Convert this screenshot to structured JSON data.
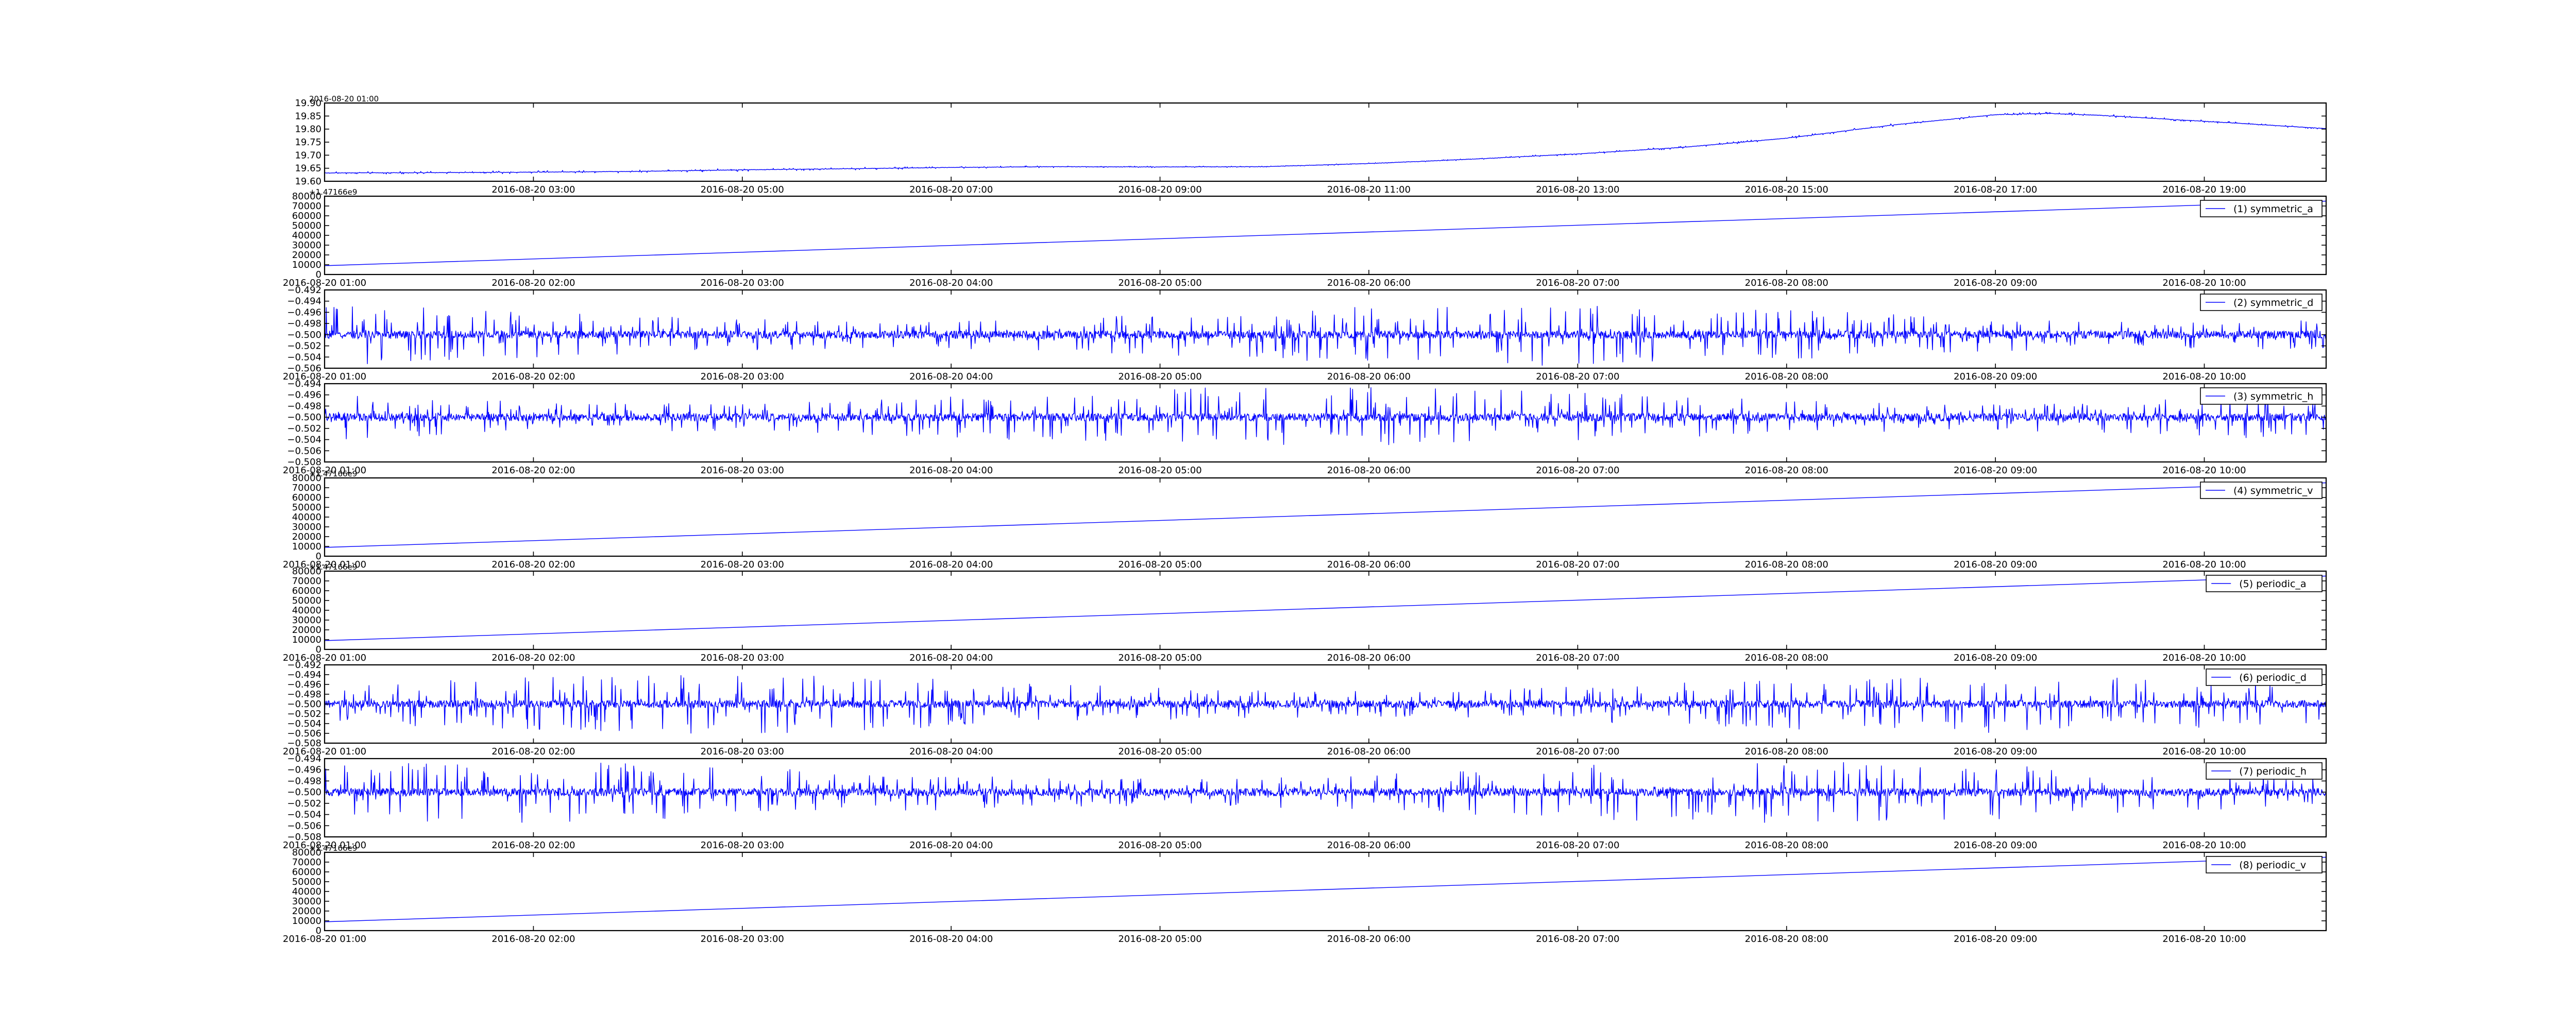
{
  "chart_data": [
    {
      "type": "line",
      "title": "",
      "xlabel": "",
      "ylabel": "",
      "color": "#0000ff",
      "grid": false,
      "legend": null,
      "offset_text": "2016-08-20 01:00",
      "xlim": [
        "2016-08-20 01:00",
        "2016-08-20 20:10"
      ],
      "ylim": [
        19.6,
        19.9
      ],
      "yticks": [
        "19.60",
        "19.65",
        "19.70",
        "19.75",
        "19.80",
        "19.85",
        "19.90"
      ],
      "xticks": [
        "2016-08-20 03:00",
        "2016-08-20 05:00",
        "2016-08-20 07:00",
        "2016-08-20 09:00",
        "2016-08-20 11:00",
        "2016-08-20 13:00",
        "2016-08-20 15:00",
        "2016-08-20 17:00",
        "2016-08-20 19:00"
      ],
      "series": [
        {
          "x": [
            "2016-08-20 01:00",
            "2016-08-20 02:00",
            "2016-08-20 03:00",
            "2016-08-20 04:00",
            "2016-08-20 05:00",
            "2016-08-20 06:00",
            "2016-08-20 07:00",
            "2016-08-20 08:00",
            "2016-08-20 09:00",
            "2016-08-20 10:00",
            "2016-08-20 11:00",
            "2016-08-20 12:00",
            "2016-08-20 13:00",
            "2016-08-20 14:00",
            "2016-08-20 15:00",
            "2016-08-20 16:00",
            "2016-08-20 17:00",
            "2016-08-20 17:30",
            "2016-08-20 18:00",
            "2016-08-20 19:00",
            "2016-08-20 20:10"
          ],
          "y": [
            19.632,
            19.633,
            19.635,
            19.638,
            19.644,
            19.648,
            19.653,
            19.656,
            19.655,
            19.656,
            19.668,
            19.685,
            19.705,
            19.73,
            19.765,
            19.815,
            19.855,
            19.86,
            19.853,
            19.83,
            19.802
          ],
          "noise": 0.006
        }
      ]
    },
    {
      "type": "line",
      "title": "",
      "xlabel": "",
      "ylabel": "",
      "color": "#0000ff",
      "grid": false,
      "legend": "top-right",
      "offset_text": "+1.47166e9",
      "xlim": [
        "2016-08-20 01:00",
        "2016-08-20 10:35"
      ],
      "ylim": [
        0,
        80000
      ],
      "yticks": [
        "0",
        "10000",
        "20000",
        "30000",
        "40000",
        "50000",
        "60000",
        "70000",
        "80000"
      ],
      "xticks": [
        "2016-08-20 01:00",
        "2016-08-20 02:00",
        "2016-08-20 03:00",
        "2016-08-20 04:00",
        "2016-08-20 05:00",
        "2016-08-20 06:00",
        "2016-08-20 07:00",
        "2016-08-20 08:00",
        "2016-08-20 09:00",
        "2016-08-20 10:00"
      ],
      "series": [
        {
          "name": "(1) symmetric_a",
          "x": [
            "2016-08-20 01:00",
            "2016-08-20 10:35"
          ],
          "y": [
            9000,
            75000
          ],
          "noise": 0
        }
      ]
    },
    {
      "type": "line",
      "title": "",
      "xlabel": "",
      "ylabel": "",
      "color": "#0000ff",
      "grid": false,
      "legend": "top-right",
      "offset_text": "",
      "xlim": [
        "2016-08-20 01:00",
        "2016-08-20 10:35"
      ],
      "ylim": [
        -0.506,
        -0.492
      ],
      "yticks": [
        "−0.506",
        "−0.504",
        "−0.502",
        "−0.500",
        "−0.498",
        "−0.496",
        "−0.494",
        "−0.492"
      ],
      "xticks": [
        "2016-08-20 01:00",
        "2016-08-20 02:00",
        "2016-08-20 03:00",
        "2016-08-20 04:00",
        "2016-08-20 05:00",
        "2016-08-20 06:00",
        "2016-08-20 07:00",
        "2016-08-20 08:00",
        "2016-08-20 09:00",
        "2016-08-20 10:00"
      ],
      "series": [
        {
          "name": "(2) symmetric_d",
          "x": [
            "2016-08-20 01:00",
            "2016-08-20 10:35"
          ],
          "y": [
            -0.5,
            -0.5
          ],
          "noise": 0.0055
        }
      ]
    },
    {
      "type": "line",
      "title": "",
      "xlabel": "",
      "ylabel": "",
      "color": "#0000ff",
      "grid": false,
      "legend": "top-right",
      "offset_text": "",
      "xlim": [
        "2016-08-20 01:00",
        "2016-08-20 10:35"
      ],
      "ylim": [
        -0.508,
        -0.494
      ],
      "yticks": [
        "−0.508",
        "−0.506",
        "−0.504",
        "−0.502",
        "−0.500",
        "−0.498",
        "−0.496",
        "−0.494"
      ],
      "xticks": [
        "2016-08-20 01:00",
        "2016-08-20 02:00",
        "2016-08-20 03:00",
        "2016-08-20 04:00",
        "2016-08-20 05:00",
        "2016-08-20 06:00",
        "2016-08-20 07:00",
        "2016-08-20 08:00",
        "2016-08-20 09:00",
        "2016-08-20 10:00"
      ],
      "series": [
        {
          "name": "(3) symmetric_h",
          "x": [
            "2016-08-20 01:00",
            "2016-08-20 10:35"
          ],
          "y": [
            -0.5,
            -0.5
          ],
          "noise": 0.0055
        }
      ]
    },
    {
      "type": "line",
      "title": "",
      "xlabel": "",
      "ylabel": "",
      "color": "#0000ff",
      "grid": false,
      "legend": "top-right",
      "offset_text": "+1.47166e9",
      "xlim": [
        "2016-08-20 01:00",
        "2016-08-20 10:35"
      ],
      "ylim": [
        0,
        80000
      ],
      "yticks": [
        "0",
        "10000",
        "20000",
        "30000",
        "40000",
        "50000",
        "60000",
        "70000",
        "80000"
      ],
      "xticks": [
        "2016-08-20 01:00",
        "2016-08-20 02:00",
        "2016-08-20 03:00",
        "2016-08-20 04:00",
        "2016-08-20 05:00",
        "2016-08-20 06:00",
        "2016-08-20 07:00",
        "2016-08-20 08:00",
        "2016-08-20 09:00",
        "2016-08-20 10:00"
      ],
      "series": [
        {
          "name": "(4) symmetric_v",
          "x": [
            "2016-08-20 01:00",
            "2016-08-20 10:35"
          ],
          "y": [
            9000,
            75000
          ],
          "noise": 0
        }
      ]
    },
    {
      "type": "line",
      "title": "",
      "xlabel": "",
      "ylabel": "",
      "color": "#0000ff",
      "grid": false,
      "legend": "top-right",
      "offset_text": "+1.47166e9",
      "xlim": [
        "2016-08-20 01:00",
        "2016-08-20 10:35"
      ],
      "ylim": [
        0,
        80000
      ],
      "yticks": [
        "0",
        "10000",
        "20000",
        "30000",
        "40000",
        "50000",
        "60000",
        "70000",
        "80000"
      ],
      "xticks": [
        "2016-08-20 01:00",
        "2016-08-20 02:00",
        "2016-08-20 03:00",
        "2016-08-20 04:00",
        "2016-08-20 05:00",
        "2016-08-20 06:00",
        "2016-08-20 07:00",
        "2016-08-20 08:00",
        "2016-08-20 09:00",
        "2016-08-20 10:00"
      ],
      "series": [
        {
          "name": "(5) periodic_a",
          "x": [
            "2016-08-20 01:00",
            "2016-08-20 10:35"
          ],
          "y": [
            9000,
            75000
          ],
          "noise": 0
        }
      ]
    },
    {
      "type": "line",
      "title": "",
      "xlabel": "",
      "ylabel": "",
      "color": "#0000ff",
      "grid": false,
      "legend": "top-right",
      "offset_text": "",
      "xlim": [
        "2016-08-20 01:00",
        "2016-08-20 10:35"
      ],
      "ylim": [
        -0.508,
        -0.492
      ],
      "yticks": [
        "−0.508",
        "−0.506",
        "−0.504",
        "−0.502",
        "−0.500",
        "−0.498",
        "−0.496",
        "−0.494",
        "−0.492"
      ],
      "xticks": [
        "2016-08-20 01:00",
        "2016-08-20 02:00",
        "2016-08-20 03:00",
        "2016-08-20 04:00",
        "2016-08-20 05:00",
        "2016-08-20 06:00",
        "2016-08-20 07:00",
        "2016-08-20 08:00",
        "2016-08-20 09:00",
        "2016-08-20 10:00"
      ],
      "series": [
        {
          "name": "(6) periodic_d",
          "x": [
            "2016-08-20 01:00",
            "2016-08-20 10:35"
          ],
          "y": [
            -0.5,
            -0.5
          ],
          "noise": 0.006
        }
      ]
    },
    {
      "type": "line",
      "title": "",
      "xlabel": "",
      "ylabel": "",
      "color": "#0000ff",
      "grid": false,
      "legend": "top-right",
      "offset_text": "",
      "xlim": [
        "2016-08-20 01:00",
        "2016-08-20 10:35"
      ],
      "ylim": [
        -0.508,
        -0.494
      ],
      "yticks": [
        "−0.508",
        "−0.506",
        "−0.504",
        "−0.502",
        "−0.500",
        "−0.498",
        "−0.496",
        "−0.494"
      ],
      "xticks": [
        "2016-08-20 01:00",
        "2016-08-20 02:00",
        "2016-08-20 03:00",
        "2016-08-20 04:00",
        "2016-08-20 05:00",
        "2016-08-20 06:00",
        "2016-08-20 07:00",
        "2016-08-20 08:00",
        "2016-08-20 09:00",
        "2016-08-20 10:00"
      ],
      "series": [
        {
          "name": "(7) periodic_h",
          "x": [
            "2016-08-20 01:00",
            "2016-08-20 10:35"
          ],
          "y": [
            -0.5,
            -0.5
          ],
          "noise": 0.0055
        }
      ]
    },
    {
      "type": "line",
      "title": "",
      "xlabel": "",
      "ylabel": "",
      "color": "#0000ff",
      "grid": false,
      "legend": "top-right",
      "offset_text": "+1.47166e9",
      "xlim": [
        "2016-08-20 01:00",
        "2016-08-20 10:35"
      ],
      "ylim": [
        0,
        80000
      ],
      "yticks": [
        "0",
        "10000",
        "20000",
        "30000",
        "40000",
        "50000",
        "60000",
        "70000",
        "80000"
      ],
      "xticks": [
        "2016-08-20 01:00",
        "2016-08-20 02:00",
        "2016-08-20 03:00",
        "2016-08-20 04:00",
        "2016-08-20 05:00",
        "2016-08-20 06:00",
        "2016-08-20 07:00",
        "2016-08-20 08:00",
        "2016-08-20 09:00",
        "2016-08-20 10:00"
      ],
      "series": [
        {
          "name": "(8) periodic_v",
          "x": [
            "2016-08-20 01:00",
            "2016-08-20 10:35"
          ],
          "y": [
            9000,
            75000
          ],
          "noise": 0
        }
      ]
    }
  ]
}
